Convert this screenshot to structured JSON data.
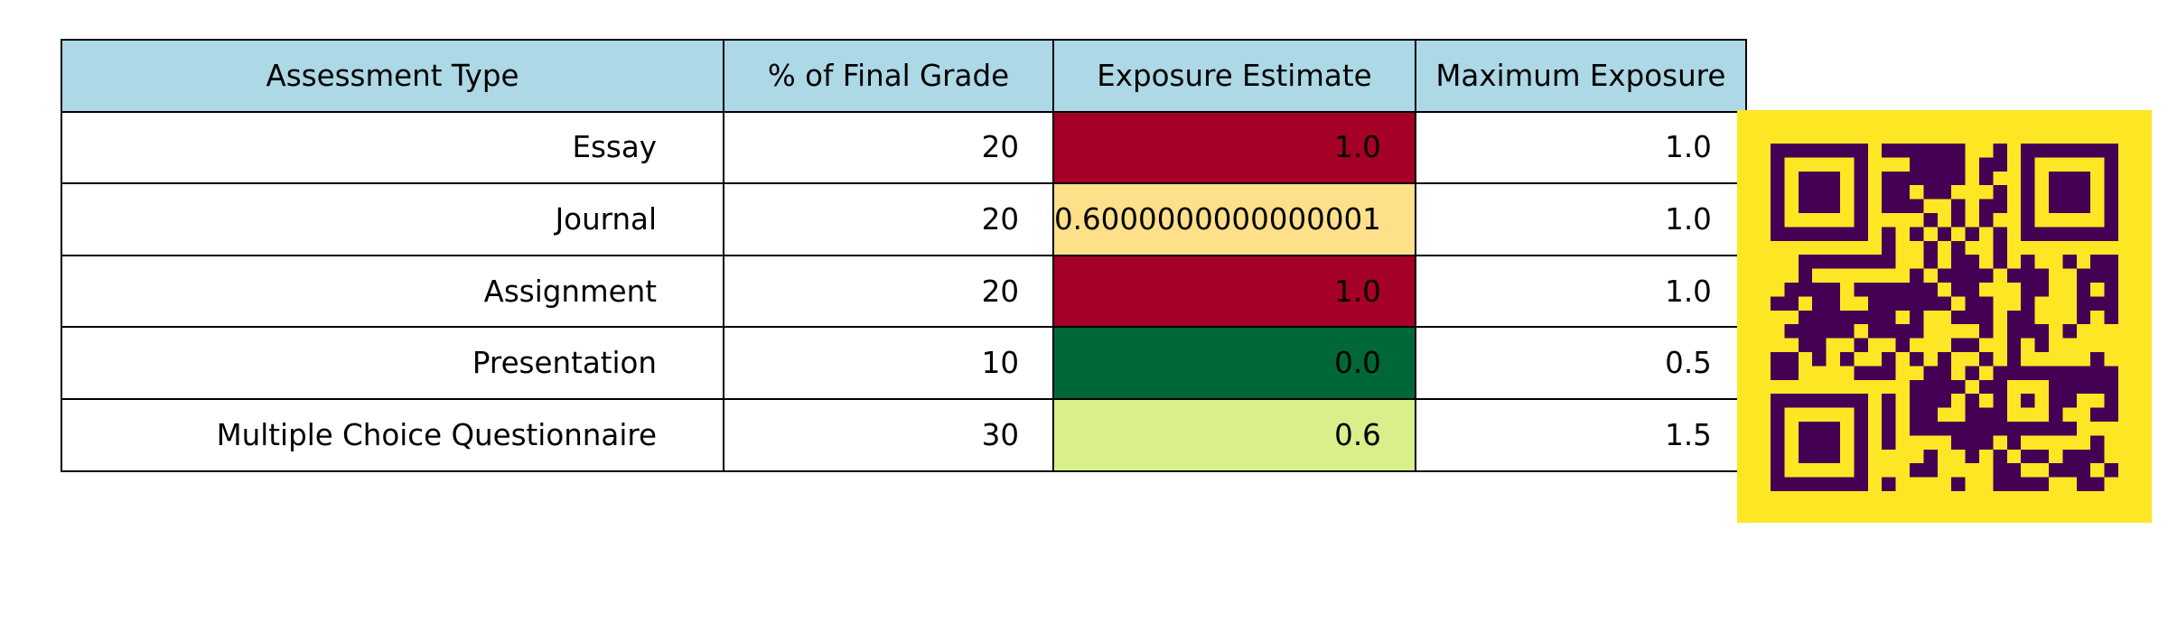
{
  "chart_data": {
    "type": "table",
    "columns": [
      "Assessment Type",
      "% of Final Grade",
      "Exposure Estimate",
      "Maximum Exposure"
    ],
    "rows": [
      {
        "type": "Essay",
        "grade": "20",
        "exposure": "1.0",
        "max": "1.0",
        "exposure_color": "#a50026"
      },
      {
        "type": "Journal",
        "grade": "20",
        "exposure": "0.6000000000000001",
        "max": "1.0",
        "exposure_color": "#fee08b"
      },
      {
        "type": "Assignment",
        "grade": "20",
        "exposure": "1.0",
        "max": "1.0",
        "exposure_color": "#a50026"
      },
      {
        "type": "Presentation",
        "grade": "10",
        "exposure": "0.0",
        "max": "0.5",
        "exposure_color": "#006837"
      },
      {
        "type": "Multiple Choice Questionnaire",
        "grade": "30",
        "exposure": "0.6",
        "max": "1.5",
        "exposure_color": "#d9ef8b"
      }
    ],
    "header_color": "#add8e6"
  },
  "qr_code": {
    "background": "#fde725",
    "foreground": "#440154"
  }
}
